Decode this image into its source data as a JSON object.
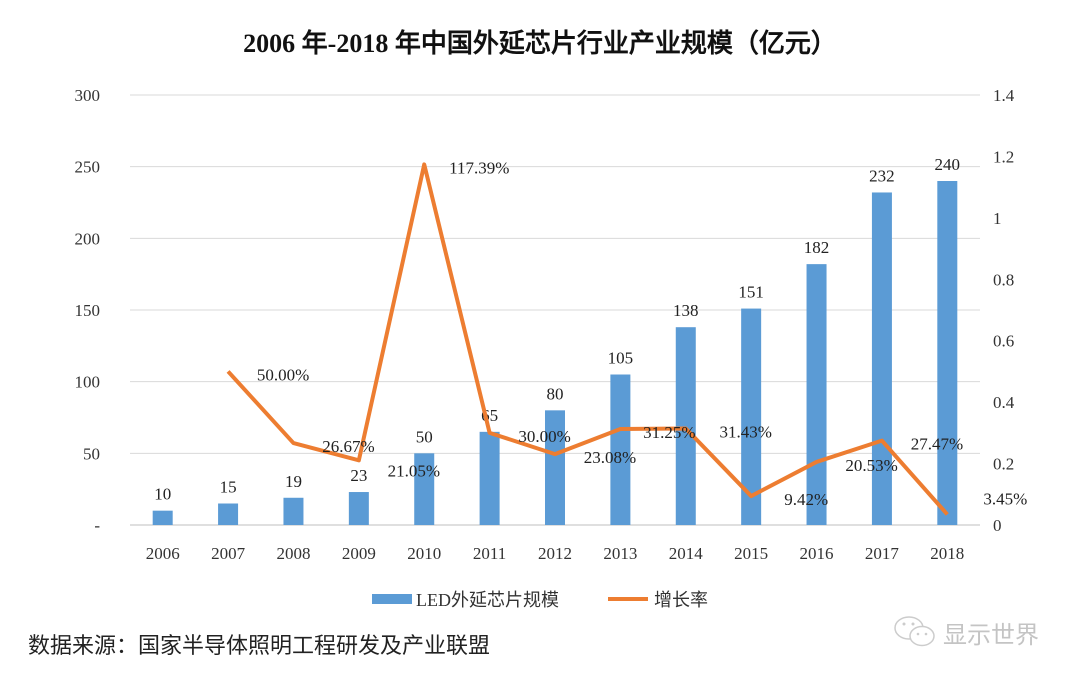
{
  "chart_data": {
    "type": "bar+line",
    "title": "2006 年-2018 年中国外延芯片行业产业规模（亿元）",
    "categories": [
      "2006",
      "2007",
      "2008",
      "2009",
      "2010",
      "2011",
      "2012",
      "2013",
      "2014",
      "2015",
      "2016",
      "2017",
      "2018"
    ],
    "series": [
      {
        "name": "LED外延芯片规模",
        "type": "bar",
        "axis": "left",
        "color": "#5b9bd5",
        "values": [
          10,
          15,
          19,
          23,
          50,
          65,
          80,
          105,
          138,
          151,
          182,
          232,
          240
        ],
        "labels": [
          "10",
          "15",
          "19",
          "23",
          "50",
          "65",
          "80",
          "105",
          "138",
          "151",
          "182",
          "232",
          "240"
        ]
      },
      {
        "name": "增长率",
        "type": "line",
        "axis": "right",
        "color": "#ed7d31",
        "values": [
          null,
          0.5,
          0.2667,
          0.2105,
          1.1739,
          0.3,
          0.2308,
          0.3125,
          0.3143,
          0.0942,
          0.2053,
          0.2747,
          0.0345
        ],
        "labels": [
          null,
          "50.00%",
          "26.67%",
          "21.05%",
          "117.39%",
          "30.00%",
          "23.08%",
          "31.25%",
          "31.43%",
          "9.42%",
          "20.53%",
          "27.47%",
          "3.45%"
        ]
      }
    ],
    "ylim_left": [
      0,
      300
    ],
    "yticks_left": [
      "-",
      "50",
      "100",
      "150",
      "200",
      "250",
      "300"
    ],
    "ylim_right": [
      0,
      1.4
    ],
    "yticks_right": [
      "0",
      "0.2",
      "0.4",
      "0.6",
      "0.8",
      "1",
      "1.2",
      "1.4"
    ],
    "grid": true,
    "legend": "bottom"
  },
  "source": "数据来源：国家半导体照明工程研发及产业联盟",
  "watermark": "显示世界"
}
